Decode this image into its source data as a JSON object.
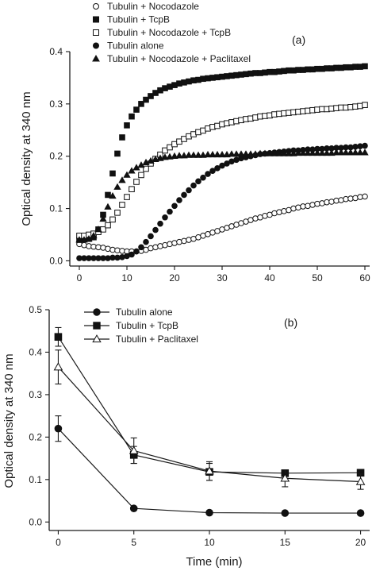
{
  "chart_data": [
    {
      "type": "scatter",
      "panel_label": "(a)",
      "ylabel": "Optical density at 340 nm",
      "xlabel": "",
      "xlim": [
        -2,
        61
      ],
      "ylim": [
        -0.01,
        0.4
      ],
      "xticks": [
        0,
        10,
        20,
        30,
        40,
        50,
        60
      ],
      "yticks": [
        0.0,
        0.1,
        0.2,
        0.3,
        0.4
      ],
      "ytick_labels": [
        "0.0",
        "0.1",
        "0.2",
        "0.3",
        "0.4"
      ],
      "legend_position": "top-left",
      "grid": false,
      "x": [
        0,
        1,
        2,
        3,
        4,
        5,
        6,
        7,
        8,
        9,
        10,
        11,
        12,
        13,
        14,
        15,
        16,
        17,
        18,
        19,
        20,
        21,
        22,
        23,
        24,
        25,
        26,
        27,
        28,
        29,
        30,
        31,
        32,
        33,
        34,
        35,
        36,
        37,
        38,
        39,
        40,
        41,
        42,
        43,
        44,
        45,
        46,
        47,
        48,
        49,
        50,
        51,
        52,
        53,
        54,
        55,
        56,
        57,
        58,
        59,
        60
      ],
      "series": [
        {
          "name": "Tubulin + Nocodazole",
          "marker": "open-circle",
          "values": [
            0.032,
            0.03,
            0.028,
            0.027,
            0.026,
            0.025,
            0.023,
            0.021,
            0.02,
            0.019,
            0.018,
            0.018,
            0.018,
            0.019,
            0.021,
            0.024,
            0.026,
            0.028,
            0.03,
            0.032,
            0.034,
            0.036,
            0.038,
            0.04,
            0.042,
            0.045,
            0.048,
            0.051,
            0.054,
            0.057,
            0.06,
            0.063,
            0.066,
            0.069,
            0.072,
            0.075,
            0.078,
            0.081,
            0.083,
            0.086,
            0.088,
            0.091,
            0.093,
            0.095,
            0.097,
            0.1,
            0.102,
            0.104,
            0.105,
            0.107,
            0.109,
            0.11,
            0.112,
            0.113,
            0.115,
            0.116,
            0.118,
            0.119,
            0.12,
            0.122,
            0.123
          ]
        },
        {
          "name": "Tubulin + TcpB",
          "marker": "filled-square",
          "values": [
            0.04,
            0.041,
            0.042,
            0.045,
            0.06,
            0.088,
            0.126,
            0.167,
            0.205,
            0.236,
            0.259,
            0.276,
            0.289,
            0.3,
            0.308,
            0.315,
            0.321,
            0.326,
            0.33,
            0.333,
            0.336,
            0.339,
            0.341,
            0.343,
            0.345,
            0.346,
            0.348,
            0.349,
            0.35,
            0.351,
            0.352,
            0.353,
            0.354,
            0.355,
            0.356,
            0.357,
            0.358,
            0.359,
            0.359,
            0.36,
            0.361,
            0.361,
            0.362,
            0.363,
            0.364,
            0.364,
            0.365,
            0.365,
            0.366,
            0.366,
            0.367,
            0.367,
            0.368,
            0.368,
            0.369,
            0.369,
            0.37,
            0.37,
            0.371,
            0.371,
            0.372
          ]
        },
        {
          "name": "Tubulin + Nocodazole + TcpB",
          "marker": "open-square",
          "values": [
            0.048,
            0.048,
            0.05,
            0.052,
            0.055,
            0.06,
            0.068,
            0.079,
            0.092,
            0.107,
            0.122,
            0.137,
            0.151,
            0.164,
            0.176,
            0.186,
            0.195,
            0.203,
            0.211,
            0.217,
            0.223,
            0.228,
            0.233,
            0.238,
            0.242,
            0.246,
            0.249,
            0.253,
            0.256,
            0.258,
            0.261,
            0.263,
            0.265,
            0.267,
            0.269,
            0.271,
            0.272,
            0.274,
            0.276,
            0.277,
            0.278,
            0.28,
            0.281,
            0.282,
            0.283,
            0.284,
            0.285,
            0.286,
            0.287,
            0.288,
            0.289,
            0.29,
            0.29,
            0.291,
            0.292,
            0.293,
            0.293,
            0.294,
            0.295,
            0.296,
            0.298
          ]
        },
        {
          "name": "Tubulin alone",
          "marker": "filled-circle",
          "values": [
            0.005,
            0.005,
            0.005,
            0.005,
            0.005,
            0.005,
            0.005,
            0.006,
            0.006,
            0.007,
            0.009,
            0.012,
            0.018,
            0.026,
            0.036,
            0.047,
            0.059,
            0.071,
            0.083,
            0.094,
            0.105,
            0.116,
            0.126,
            0.135,
            0.144,
            0.152,
            0.159,
            0.166,
            0.172,
            0.177,
            0.182,
            0.186,
            0.19,
            0.193,
            0.196,
            0.198,
            0.2,
            0.202,
            0.204,
            0.205,
            0.206,
            0.207,
            0.208,
            0.209,
            0.21,
            0.211,
            0.211,
            0.212,
            0.213,
            0.213,
            0.214,
            0.214,
            0.215,
            0.215,
            0.216,
            0.216,
            0.217,
            0.217,
            0.218,
            0.219,
            0.22
          ]
        },
        {
          "name": "Tubulin + Nocodazole + Paclitaxel",
          "marker": "filled-triangle",
          "values": [
            0.04,
            0.04,
            0.042,
            0.048,
            0.06,
            0.08,
            0.103,
            0.124,
            0.141,
            0.154,
            0.164,
            0.172,
            0.178,
            0.183,
            0.188,
            0.191,
            0.194,
            0.196,
            0.198,
            0.199,
            0.2,
            0.201,
            0.201,
            0.202,
            0.202,
            0.202,
            0.202,
            0.203,
            0.203,
            0.203,
            0.203,
            0.203,
            0.204,
            0.204,
            0.204,
            0.204,
            0.204,
            0.204,
            0.205,
            0.205,
            0.205,
            0.205,
            0.205,
            0.205,
            0.205,
            0.205,
            0.206,
            0.206,
            0.206,
            0.206,
            0.206,
            0.206,
            0.206,
            0.206,
            0.207,
            0.207,
            0.207,
            0.207,
            0.207,
            0.207,
            0.207
          ]
        }
      ]
    },
    {
      "type": "line",
      "panel_label": "(b)",
      "ylabel": "Optical density at 340 nm",
      "xlabel": "Time (min)",
      "xlim": [
        -0.6,
        20.6
      ],
      "ylim": [
        -0.02,
        0.5
      ],
      "xticks": [
        0,
        5,
        10,
        15,
        20
      ],
      "yticks": [
        0.0,
        0.1,
        0.2,
        0.3,
        0.4,
        0.5
      ],
      "ytick_labels": [
        "0.0",
        "0.1",
        "0.2",
        "0.3",
        "0.4",
        "0.5"
      ],
      "legend_position": "top-left",
      "grid": false,
      "x": [
        0,
        5,
        10,
        15,
        20
      ],
      "series": [
        {
          "name": "Tubulin alone",
          "marker": "filled-circle",
          "values": [
            0.22,
            0.032,
            0.022,
            0.021,
            0.021
          ],
          "errors": [
            0.03,
            0.0,
            0.0,
            0.0,
            0.0
          ]
        },
        {
          "name": "Tubulin + TcpB",
          "marker": "filled-square",
          "values": [
            0.436,
            0.158,
            0.118,
            0.115,
            0.116
          ],
          "errors": [
            0.022,
            0.02,
            0.02,
            0.0,
            0.0
          ]
        },
        {
          "name": "Tubulin + Paclitaxel",
          "marker": "open-triangle",
          "values": [
            0.365,
            0.168,
            0.12,
            0.103,
            0.095
          ],
          "errors": [
            0.04,
            0.03,
            0.022,
            0.02,
            0.018
          ]
        }
      ]
    }
  ]
}
